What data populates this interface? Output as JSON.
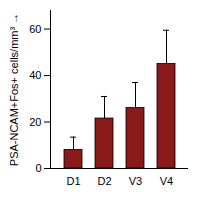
{
  "chart_data": {
    "type": "bar",
    "y_label": "PSA-NCAM+Fos+ cells/mm³",
    "categories": [
      "D1",
      "D2",
      "V3",
      "V4"
    ],
    "values": [
      8,
      21.5,
      26,
      45
    ],
    "errors": [
      5.5,
      9.5,
      11,
      14.5
    ],
    "color": "#8b1a1a",
    "ylim": [
      0,
      68
    ],
    "yticks": [
      0,
      20,
      40,
      60
    ],
    "grid": false
  }
}
